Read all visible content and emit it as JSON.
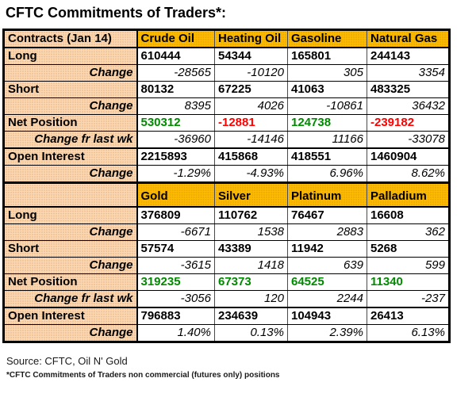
{
  "title": "CFTC Commitments of Traders*:",
  "footer": {
    "source": "Source: CFTC, Oil N' Gold",
    "footnote": "*CFTC Commitments of Traders non commercial (futures only) positions"
  },
  "colors": {
    "header_bg": "#fbbb00",
    "label_bg": "#fbd7b3",
    "positive": "#008a00",
    "negative": "#ff0000"
  },
  "chart_data": {
    "type": "table",
    "title": "CFTC Commitments of Traders*:",
    "report_date": "Jan 14",
    "sections": [
      {
        "columns": [
          "Contracts (Jan 14)",
          "Crude Oil",
          "Heating Oil",
          "Gasoline",
          "Natural Gas"
        ],
        "rows": [
          {
            "label": "Long",
            "type": "value",
            "values": [
              "610444",
              "54344",
              "165801",
              "244143"
            ]
          },
          {
            "label": "Change",
            "type": "change",
            "values": [
              "-28565",
              "-10120",
              "305",
              "3354"
            ]
          },
          {
            "label": "Short",
            "type": "value",
            "values": [
              "80132",
              "67225",
              "41063",
              "483325"
            ]
          },
          {
            "label": "Change",
            "type": "change",
            "values": [
              "8395",
              "4026",
              "-10861",
              "36432"
            ]
          },
          {
            "label": "Net Position",
            "type": "value",
            "values": [
              "530312",
              "-12881",
              "124738",
              "-239182"
            ],
            "value_colors": [
              "positive",
              "negative",
              "positive",
              "negative"
            ]
          },
          {
            "label": "Change fr last wk",
            "type": "change",
            "values": [
              "-36960",
              "-14146",
              "11166",
              "-33078"
            ]
          },
          {
            "label": "Open Interest",
            "type": "value",
            "thick_top": true,
            "values": [
              "2215893",
              "415868",
              "418551",
              "1460904"
            ]
          },
          {
            "label": "Change",
            "type": "change",
            "values": [
              "-1.29%",
              "-4.93%",
              "6.96%",
              "8.62%"
            ]
          }
        ]
      },
      {
        "columns": [
          "",
          "Gold",
          "Silver",
          "Platinum",
          "Palladium"
        ],
        "rows": [
          {
            "label": "Long",
            "type": "value",
            "values": [
              "376809",
              "110762",
              "76467",
              "16608"
            ]
          },
          {
            "label": "Change",
            "type": "change",
            "values": [
              "-6671",
              "1538",
              "2883",
              "362"
            ]
          },
          {
            "label": "Short",
            "type": "value",
            "values": [
              "57574",
              "43389",
              "11942",
              "5268"
            ]
          },
          {
            "label": "Change",
            "type": "change",
            "values": [
              "-3615",
              "1418",
              "639",
              "599"
            ]
          },
          {
            "label": "Net Position",
            "type": "value",
            "values": [
              "319235",
              "67373",
              "64525",
              "11340"
            ],
            "value_colors": [
              "positive",
              "positive",
              "positive",
              "positive"
            ]
          },
          {
            "label": "Change fr last wk",
            "type": "change",
            "values": [
              "-3056",
              "120",
              "2244",
              "-237"
            ]
          },
          {
            "label": "Open Interest",
            "type": "value",
            "thick_top": true,
            "values": [
              "796883",
              "234639",
              "104943",
              "26413"
            ]
          },
          {
            "label": "Change",
            "type": "change",
            "values": [
              "1.40%",
              "0.13%",
              "2.39%",
              "6.13%"
            ]
          }
        ]
      }
    ]
  }
}
